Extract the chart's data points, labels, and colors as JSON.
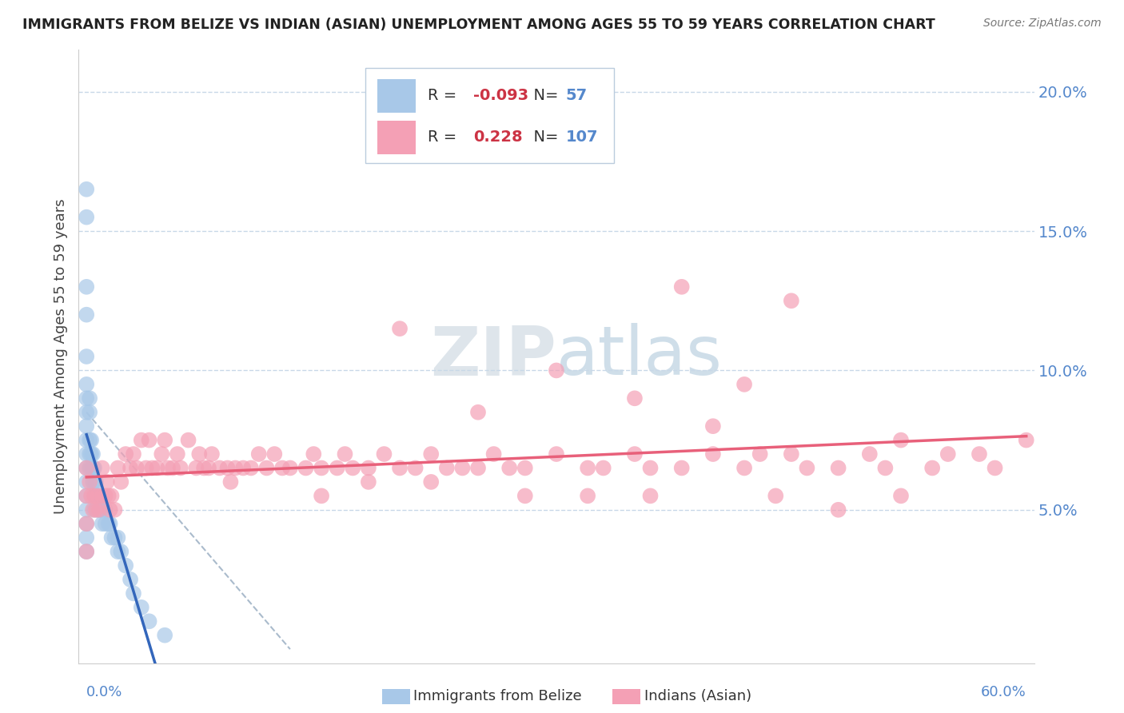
{
  "title": "IMMIGRANTS FROM BELIZE VS INDIAN (ASIAN) UNEMPLOYMENT AMONG AGES 55 TO 59 YEARS CORRELATION CHART",
  "source": "Source: ZipAtlas.com",
  "ylabel": "Unemployment Among Ages 55 to 59 years",
  "legend_R1": "-0.093",
  "legend_N1": "57",
  "legend_R2": "0.228",
  "legend_N2": "107",
  "color_belize": "#a8c8e8",
  "color_indian": "#f4a0b5",
  "color_belize_line": "#3366bb",
  "color_indian_line": "#e8607a",
  "color_grid": "#c8d8e8",
  "color_ytick": "#5588cc",
  "ytick_values": [
    0.05,
    0.1,
    0.15,
    0.2
  ],
  "ytick_labels": [
    "5.0%",
    "10.0%",
    "15.0%",
    "20.0%"
  ],
  "xlim": [
    0.0,
    0.6
  ],
  "ylim": [
    0.0,
    0.21
  ],
  "belize_x": [
    0.0,
    0.0,
    0.0,
    0.0,
    0.0,
    0.0,
    0.0,
    0.0,
    0.0,
    0.0,
    0.0,
    0.0,
    0.0,
    0.0,
    0.0,
    0.0,
    0.0,
    0.0,
    0.002,
    0.002,
    0.002,
    0.002,
    0.002,
    0.003,
    0.003,
    0.003,
    0.004,
    0.004,
    0.004,
    0.005,
    0.005,
    0.005,
    0.005,
    0.006,
    0.006,
    0.007,
    0.007,
    0.008,
    0.008,
    0.009,
    0.01,
    0.01,
    0.012,
    0.012,
    0.014,
    0.015,
    0.016,
    0.018,
    0.02,
    0.02,
    0.022,
    0.025,
    0.028,
    0.03,
    0.035,
    0.04,
    0.05
  ],
  "belize_y": [
    0.165,
    0.155,
    0.13,
    0.12,
    0.105,
    0.095,
    0.09,
    0.085,
    0.08,
    0.075,
    0.07,
    0.065,
    0.06,
    0.055,
    0.05,
    0.045,
    0.04,
    0.035,
    0.09,
    0.085,
    0.075,
    0.07,
    0.065,
    0.075,
    0.07,
    0.065,
    0.07,
    0.065,
    0.06,
    0.065,
    0.06,
    0.055,
    0.05,
    0.06,
    0.055,
    0.055,
    0.05,
    0.055,
    0.05,
    0.05,
    0.05,
    0.045,
    0.05,
    0.045,
    0.045,
    0.045,
    0.04,
    0.04,
    0.04,
    0.035,
    0.035,
    0.03,
    0.025,
    0.02,
    0.015,
    0.01,
    0.005
  ],
  "indian_x": [
    0.0,
    0.0,
    0.0,
    0.0,
    0.002,
    0.003,
    0.004,
    0.005,
    0.006,
    0.007,
    0.008,
    0.01,
    0.01,
    0.012,
    0.013,
    0.014,
    0.015,
    0.016,
    0.018,
    0.02,
    0.022,
    0.025,
    0.028,
    0.03,
    0.032,
    0.035,
    0.038,
    0.04,
    0.042,
    0.045,
    0.048,
    0.05,
    0.052,
    0.055,
    0.058,
    0.06,
    0.065,
    0.07,
    0.072,
    0.075,
    0.078,
    0.08,
    0.085,
    0.09,
    0.092,
    0.095,
    0.1,
    0.105,
    0.11,
    0.115,
    0.12,
    0.125,
    0.13,
    0.14,
    0.145,
    0.15,
    0.16,
    0.165,
    0.17,
    0.18,
    0.19,
    0.2,
    0.21,
    0.22,
    0.23,
    0.24,
    0.25,
    0.26,
    0.27,
    0.28,
    0.3,
    0.32,
    0.33,
    0.35,
    0.36,
    0.38,
    0.4,
    0.42,
    0.43,
    0.45,
    0.46,
    0.48,
    0.5,
    0.51,
    0.52,
    0.54,
    0.55,
    0.57,
    0.58,
    0.6,
    0.38,
    0.42,
    0.45,
    0.2,
    0.25,
    0.3,
    0.35,
    0.4,
    0.15,
    0.18,
    0.22,
    0.28,
    0.32,
    0.36,
    0.44,
    0.48,
    0.52
  ],
  "indian_y": [
    0.065,
    0.055,
    0.045,
    0.035,
    0.06,
    0.055,
    0.05,
    0.055,
    0.05,
    0.055,
    0.05,
    0.065,
    0.055,
    0.055,
    0.06,
    0.055,
    0.05,
    0.055,
    0.05,
    0.065,
    0.06,
    0.07,
    0.065,
    0.07,
    0.065,
    0.075,
    0.065,
    0.075,
    0.065,
    0.065,
    0.07,
    0.075,
    0.065,
    0.065,
    0.07,
    0.065,
    0.075,
    0.065,
    0.07,
    0.065,
    0.065,
    0.07,
    0.065,
    0.065,
    0.06,
    0.065,
    0.065,
    0.065,
    0.07,
    0.065,
    0.07,
    0.065,
    0.065,
    0.065,
    0.07,
    0.065,
    0.065,
    0.07,
    0.065,
    0.065,
    0.07,
    0.065,
    0.065,
    0.07,
    0.065,
    0.065,
    0.065,
    0.07,
    0.065,
    0.065,
    0.07,
    0.065,
    0.065,
    0.07,
    0.065,
    0.065,
    0.07,
    0.065,
    0.07,
    0.07,
    0.065,
    0.065,
    0.07,
    0.065,
    0.075,
    0.065,
    0.07,
    0.07,
    0.065,
    0.075,
    0.13,
    0.095,
    0.125,
    0.115,
    0.085,
    0.1,
    0.09,
    0.08,
    0.055,
    0.06,
    0.06,
    0.055,
    0.055,
    0.055,
    0.055,
    0.05,
    0.055
  ]
}
